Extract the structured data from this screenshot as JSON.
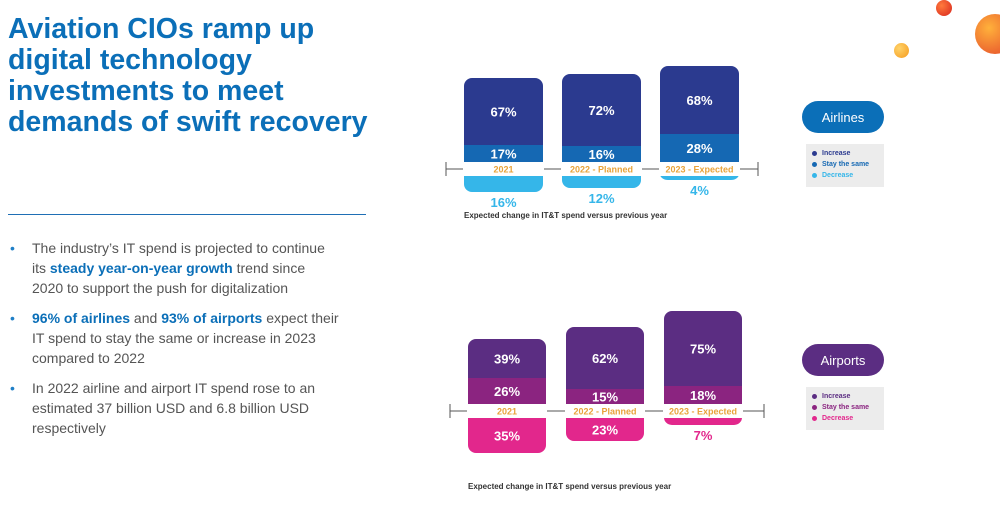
{
  "title": "Aviation CIOs ramp up digital technology investments to meet demands of swift recovery",
  "bullets": [
    {
      "before": "The industry’s IT spend is projected to continue its ",
      "highlight": "steady year-on-year growth",
      "after": " trend since 2020 to support the push for digitalization"
    },
    {
      "highlight": "96% of airlines",
      "middle": " and ",
      "highlight2": "93% of airports",
      "after": " expect their IT spend to stay the same or increase in 2023 compared to 2022"
    },
    {
      "text": "In 2022 airline and airport IT spend rose to an estimated 37 billion USD and 6.8 billion USD respectively"
    }
  ],
  "colors": {
    "airlines_increase": "#2b3a8f",
    "airlines_same": "#1568b3",
    "airlines_decrease": "#35b6e9",
    "airports_increase": "#5b2d82",
    "airports_same": "#8b2480",
    "airports_decrease": "#e2278c",
    "year_label": "#e8a33a",
    "title_blue": "#0b6fb8"
  },
  "chart_data": [
    {
      "type": "bar",
      "name": "Airlines",
      "categories": [
        "2021",
        "2022 - Planned",
        "2023 - Expected"
      ],
      "series": [
        {
          "name": "Increase",
          "values": [
            67,
            72,
            68
          ],
          "labels": [
            "67%",
            "72%",
            "68%"
          ]
        },
        {
          "name": "Stay the same",
          "values": [
            17,
            16,
            28
          ],
          "labels": [
            "17%",
            "16%",
            "28%"
          ]
        },
        {
          "name": "Decrease",
          "values": [
            16,
            12,
            4
          ],
          "labels": [
            "16%",
            "12%",
            "4%"
          ]
        }
      ],
      "xlabel": "Expected change in IT&T spend versus previous year",
      "legend": [
        "Increase",
        "Stay the same",
        "Decrease"
      ],
      "legend_placement": "right"
    },
    {
      "type": "bar",
      "name": "Airports",
      "categories": [
        "2021",
        "2022 - Planned",
        "2023 - Expected"
      ],
      "series": [
        {
          "name": "Increase",
          "values": [
            39,
            62,
            75
          ],
          "labels": [
            "39%",
            "62%",
            "75%"
          ]
        },
        {
          "name": "Stay the same",
          "values": [
            26,
            15,
            18
          ],
          "labels": [
            "26%",
            "15%",
            "18%"
          ]
        },
        {
          "name": "Decrease",
          "values": [
            35,
            23,
            7
          ],
          "labels": [
            "35%",
            "23%",
            "7%"
          ]
        }
      ],
      "xlabel": "Expected change in IT&T spend versus previous year",
      "legend": [
        "Increase",
        "Stay the same",
        "Decrease"
      ],
      "legend_placement": "right"
    }
  ]
}
